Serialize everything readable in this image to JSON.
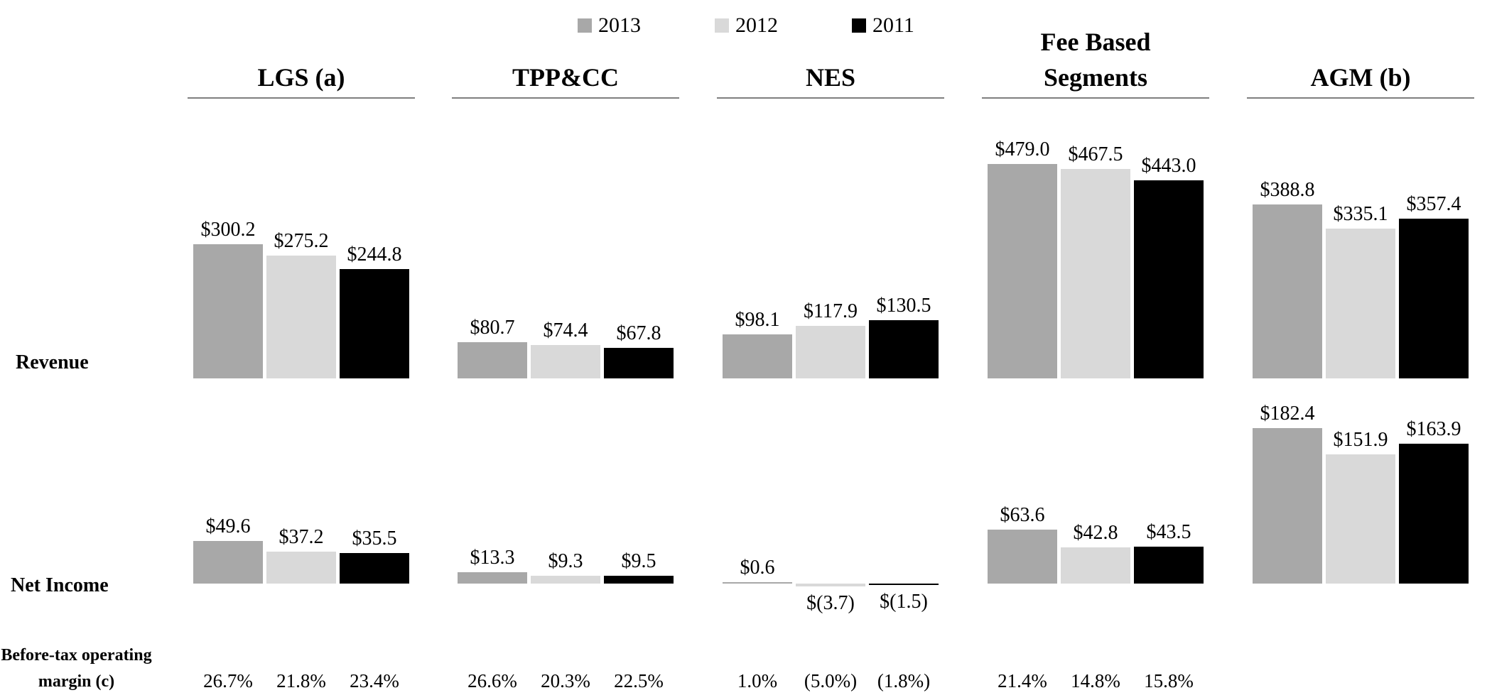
{
  "legend": {
    "items": [
      {
        "label": "2013",
        "color": "#a8a8a8"
      },
      {
        "label": "2012",
        "color": "#d9d9d9"
      },
      {
        "label": "2011",
        "color": "#000000"
      }
    ]
  },
  "row_labels": {
    "revenue": "Revenue",
    "net_income": "Net Income",
    "margin_line1": "Before-tax operating",
    "margin_line2": "margin (c)"
  },
  "chart_data": {
    "type": "bar",
    "years": [
      "2013",
      "2012",
      "2011"
    ],
    "colors": [
      "#a8a8a8",
      "#d9d9d9",
      "#000000"
    ],
    "rows": [
      "Revenue",
      "Net Income",
      "Before-tax operating margin (c)"
    ],
    "groups": [
      {
        "name": "LGS (a)",
        "header_lines": [
          "LGS (a)"
        ],
        "revenue": {
          "values": [
            300.2,
            275.2,
            244.8
          ],
          "labels": [
            "$300.2",
            "$275.2",
            "$244.8"
          ]
        },
        "net_income": {
          "values": [
            49.6,
            37.2,
            35.5
          ],
          "labels": [
            "$49.6",
            "$37.2",
            "$35.5"
          ]
        },
        "margins": [
          "26.7%",
          "21.8%",
          "23.4%"
        ]
      },
      {
        "name": "TPP&CC",
        "header_lines": [
          "TPP&CC"
        ],
        "revenue": {
          "values": [
            80.7,
            74.4,
            67.8
          ],
          "labels": [
            "$80.7",
            "$74.4",
            "$67.8"
          ]
        },
        "net_income": {
          "values": [
            13.3,
            9.3,
            9.5
          ],
          "labels": [
            "$13.3",
            "$9.3",
            "$9.5"
          ]
        },
        "margins": [
          "26.6%",
          "20.3%",
          "22.5%"
        ]
      },
      {
        "name": "NES",
        "header_lines": [
          "NES"
        ],
        "revenue": {
          "values": [
            98.1,
            117.9,
            130.5
          ],
          "labels": [
            "$98.1",
            "$117.9",
            "$130.5"
          ]
        },
        "net_income": {
          "values": [
            0.6,
            -3.7,
            -1.5
          ],
          "labels": [
            "$0.6",
            "$(3.7)",
            "$(1.5)"
          ]
        },
        "margins": [
          "1.0%",
          "(5.0%)",
          "(1.8%)"
        ]
      },
      {
        "name": "Fee Based Segments",
        "header_lines": [
          "Fee Based",
          "Segments"
        ],
        "revenue": {
          "values": [
            479.0,
            467.5,
            443.0
          ],
          "labels": [
            "$479.0",
            "$467.5",
            "$443.0"
          ]
        },
        "net_income": {
          "values": [
            63.6,
            42.8,
            43.5
          ],
          "labels": [
            "$63.6",
            "$42.8",
            "$43.5"
          ]
        },
        "margins": [
          "21.4%",
          "14.8%",
          "15.8%"
        ]
      },
      {
        "name": "AGM (b)",
        "header_lines": [
          "AGM (b)"
        ],
        "revenue": {
          "values": [
            388.8,
            335.1,
            357.4
          ],
          "labels": [
            "$388.8",
            "$335.1",
            "$357.4"
          ]
        },
        "net_income": {
          "values": [
            182.4,
            151.9,
            163.9
          ],
          "labels": [
            "$182.4",
            "$151.9",
            "$163.9"
          ]
        },
        "margins": []
      }
    ]
  }
}
